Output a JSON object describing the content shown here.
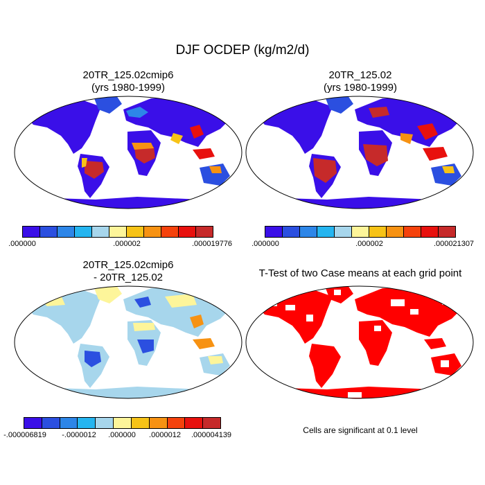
{
  "title": "DJF OCDEP (kg/m2/d)",
  "panels": [
    {
      "title_line1": "20TR_125.02cmip6",
      "title_line2": "(yrs 1980-1999)",
      "colorbar": {
        "colors": [
          "#3a0fe8",
          "#2b4fe0",
          "#2d86e8",
          "#25b5f0",
          "#a7d6ec",
          "#fdf59a",
          "#f7c317",
          "#f79212",
          "#f5420c",
          "#e8110e",
          "#c62a2a"
        ],
        "ticks": [
          ".000000",
          ".000002",
          ".000019776"
        ]
      }
    },
    {
      "title_line1": "20TR_125.02",
      "title_line2": "(yrs 1980-1999)",
      "colorbar": {
        "colors": [
          "#3a0fe8",
          "#2b4fe0",
          "#2d86e8",
          "#25b5f0",
          "#a7d6ec",
          "#fdf59a",
          "#f7c317",
          "#f79212",
          "#f5420c",
          "#e8110e",
          "#c62a2a"
        ],
        "ticks": [
          ".000000",
          ".000002",
          ".000021307"
        ]
      }
    },
    {
      "title_line1": "20TR_125.02cmip6",
      "title_line2": "- 20TR_125.02",
      "colorbar": {
        "colors": [
          "#3a0fe8",
          "#2b4fe0",
          "#2d86e8",
          "#25b5f0",
          "#a7d6ec",
          "#fdf59a",
          "#f7c317",
          "#f79212",
          "#f5420c",
          "#e8110e",
          "#c62a2a"
        ],
        "ticks": [
          "-.000006819",
          "-.0000012",
          ".000000",
          ".0000012",
          ".000004139"
        ]
      }
    },
    {
      "title_line1": "T-Test of two Case means at each grid point",
      "note": "Cells are significant at 0.1 level"
    }
  ]
}
